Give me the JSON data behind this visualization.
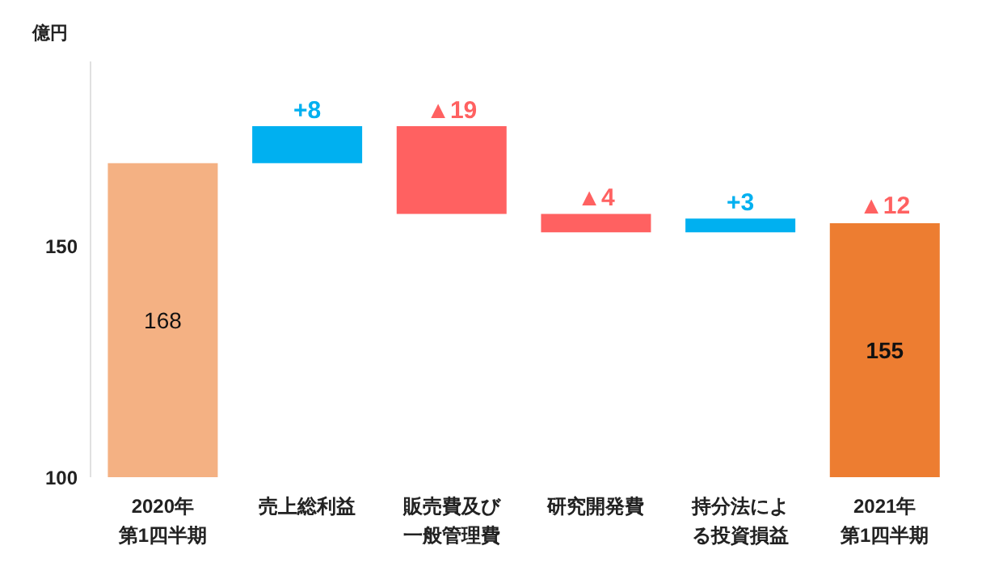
{
  "chart_data": {
    "type": "bar",
    "ylabel": "億円",
    "categories": [
      "2020年第1四半期",
      "売上総利益",
      "販売費及び一般管理費",
      "研究開発費",
      "持分法による投資損益",
      "2021年第1四半期"
    ],
    "base": [
      100,
      168,
      176,
      157,
      153,
      100
    ],
    "values": [
      68,
      8,
      -19,
      -4,
      3,
      55
    ],
    "value_labels": [
      "168",
      "+8",
      "▲19",
      "▲4",
      "+3",
      "155"
    ],
    "colors": [
      "#f4b183",
      "#00b0f0",
      "#ff6161",
      "#ff6161",
      "#00b0f0",
      "#ed7d31"
    ],
    "ylim": [
      100,
      190
    ],
    "yticks": [
      100,
      150
    ],
    "annotations": [
      {
        "text": "▲12",
        "x": "2021年第1四半期",
        "y": 155
      }
    ]
  }
}
